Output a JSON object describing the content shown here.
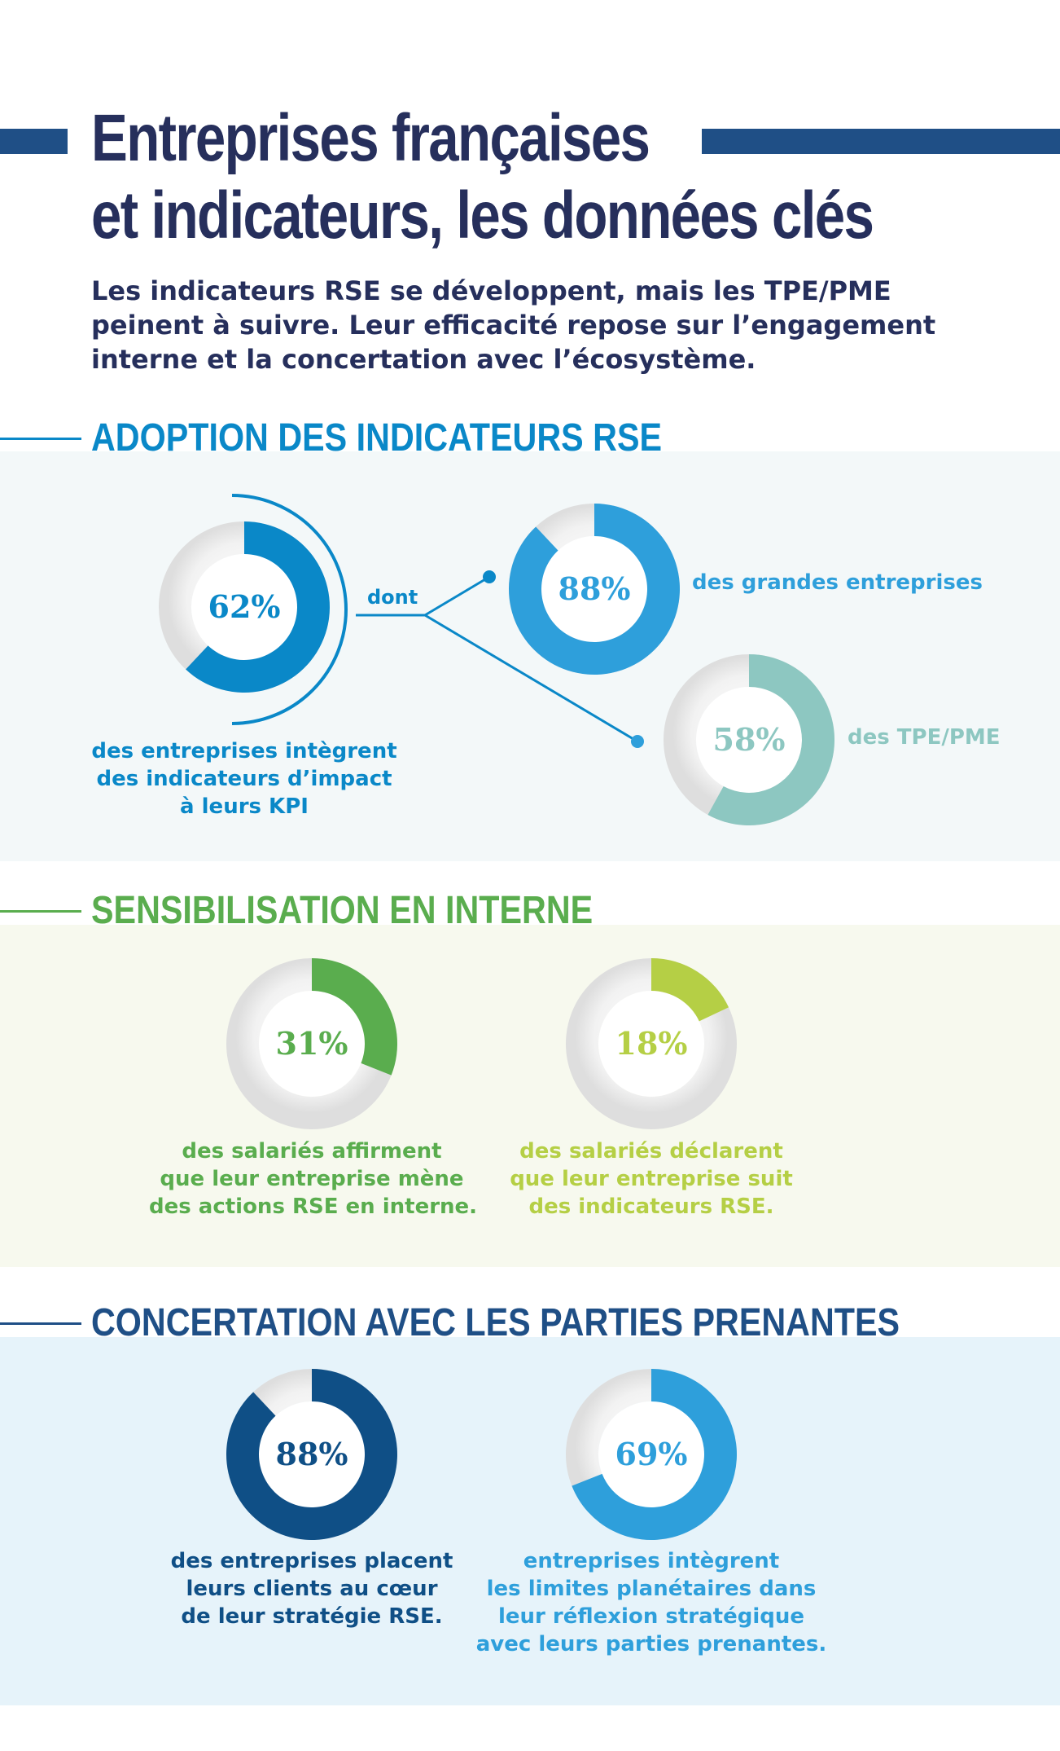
{
  "header": {
    "title_line1": "Entreprises françaises",
    "title_line2": "et indicateurs, les données clés",
    "subtitle_line1": "Les indicateurs RSE se développent, mais les TPE/PME",
    "subtitle_line2": "peinent à suivre. Leur efficacité repose sur l’engagement",
    "subtitle_line3": "interne et la concertation avec l’écosystème."
  },
  "colors": {
    "navy": "#262f5c",
    "title_bar": "#1f4f86",
    "blue": "#0a88c8",
    "light_blue": "#2e9fdb",
    "teal": "#8dc7c1",
    "green": "#5aad4e",
    "lime": "#b5cf45",
    "dark_blue": "#0f4f86",
    "band1": "#f3f8f9",
    "band2": "#f7f9ee",
    "band3": "#e6f3fa"
  },
  "sections": {
    "adoption": {
      "title": "ADOPTION DES INDICATEURS RSE",
      "connector_label": "dont",
      "main_caption_line1": "des entreprises intègrent",
      "main_caption_line2": "des indicateurs d’impact",
      "main_caption_line3": "à leurs KPI",
      "large_label": "des grandes entreprises",
      "small_label": "des TPE/PME"
    },
    "internal": {
      "title": "SENSIBILISATION EN INTERNE",
      "left_caption_line1": "des salariés affirment",
      "left_caption_line2": "que leur entreprise mène",
      "left_caption_line3": "des actions RSE en interne.",
      "right_caption_line1": "des salariés déclarent",
      "right_caption_line2": "que leur entreprise suit",
      "right_caption_line3": "des indicateurs RSE."
    },
    "stakeholders": {
      "title": "CONCERTATION AVEC LES PARTIES PRENANTES",
      "left_caption_line1": "des entreprises placent",
      "left_caption_line2": "leurs clients au cœur",
      "left_caption_line3": "de leur stratégie RSE.",
      "right_caption_line1": "entreprises intègrent",
      "right_caption_line2": "les limites planétaires dans",
      "right_caption_line3": "leur réflexion stratégique",
      "right_caption_line4": "avec leurs parties prenantes."
    }
  },
  "chart_data": [
    {
      "type": "pie",
      "id": "adoption_total",
      "value": 62,
      "label": "62%",
      "color": "#0a88c8"
    },
    {
      "type": "pie",
      "id": "adoption_large",
      "value": 88,
      "label": "88%",
      "color": "#2e9fdb"
    },
    {
      "type": "pie",
      "id": "adoption_sme",
      "value": 58,
      "label": "58%",
      "color": "#8dc7c1"
    },
    {
      "type": "pie",
      "id": "internal_actions",
      "value": 31,
      "label": "31%",
      "color": "#5aad4e"
    },
    {
      "type": "pie",
      "id": "internal_indicators",
      "value": 18,
      "label": "18%",
      "color": "#b5cf45"
    },
    {
      "type": "pie",
      "id": "clients_core",
      "value": 88,
      "label": "88%",
      "color": "#0f4f86"
    },
    {
      "type": "pie",
      "id": "planetary_limits",
      "value": 69,
      "label": "69%",
      "color": "#2e9fdb"
    }
  ]
}
